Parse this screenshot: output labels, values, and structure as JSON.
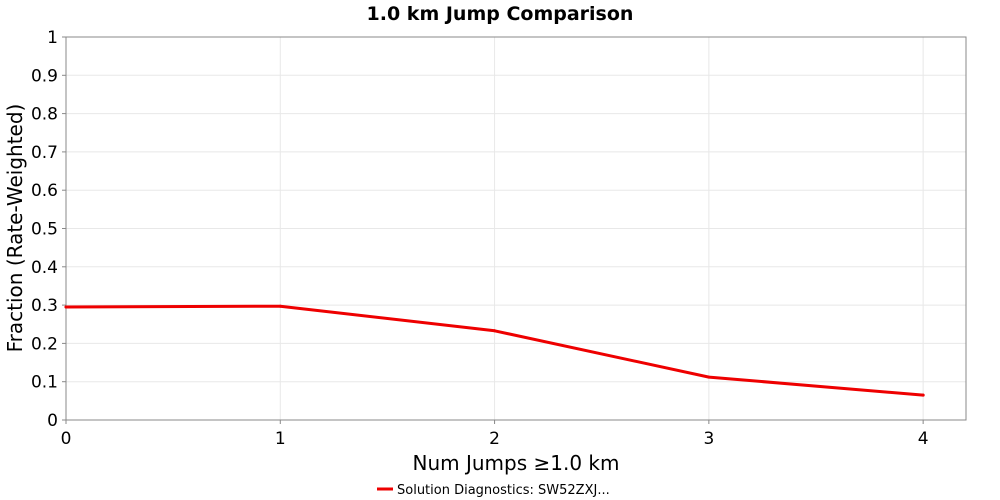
{
  "chart_data": {
    "type": "line",
    "title": "1.0 km Jump Comparison",
    "xlabel": "Num Jumps ≥1.0 km",
    "ylabel": "Fraction (Rate-Weighted)",
    "xlim": [
      0,
      4.2
    ],
    "ylim": [
      0,
      1
    ],
    "xticks": [
      0,
      1,
      2,
      3,
      4
    ],
    "yticks": [
      0,
      0.1,
      0.2,
      0.3,
      0.4,
      0.5,
      0.6,
      0.7,
      0.8,
      0.9,
      1
    ],
    "ytick_labels": [
      "0",
      "0.1",
      "0.2",
      "0.3",
      "0.4",
      "0.5",
      "0.6",
      "0.7",
      "0.8",
      "0.9",
      "1"
    ],
    "grid": true,
    "legend_position": "bottom-center",
    "series": [
      {
        "name": "Solution Diagnostics: SW52ZXJ...",
        "color": "#ee0000",
        "x": [
          0,
          1,
          2,
          3,
          4
        ],
        "y": [
          0.295,
          0.297,
          0.233,
          0.112,
          0.065
        ]
      }
    ]
  }
}
